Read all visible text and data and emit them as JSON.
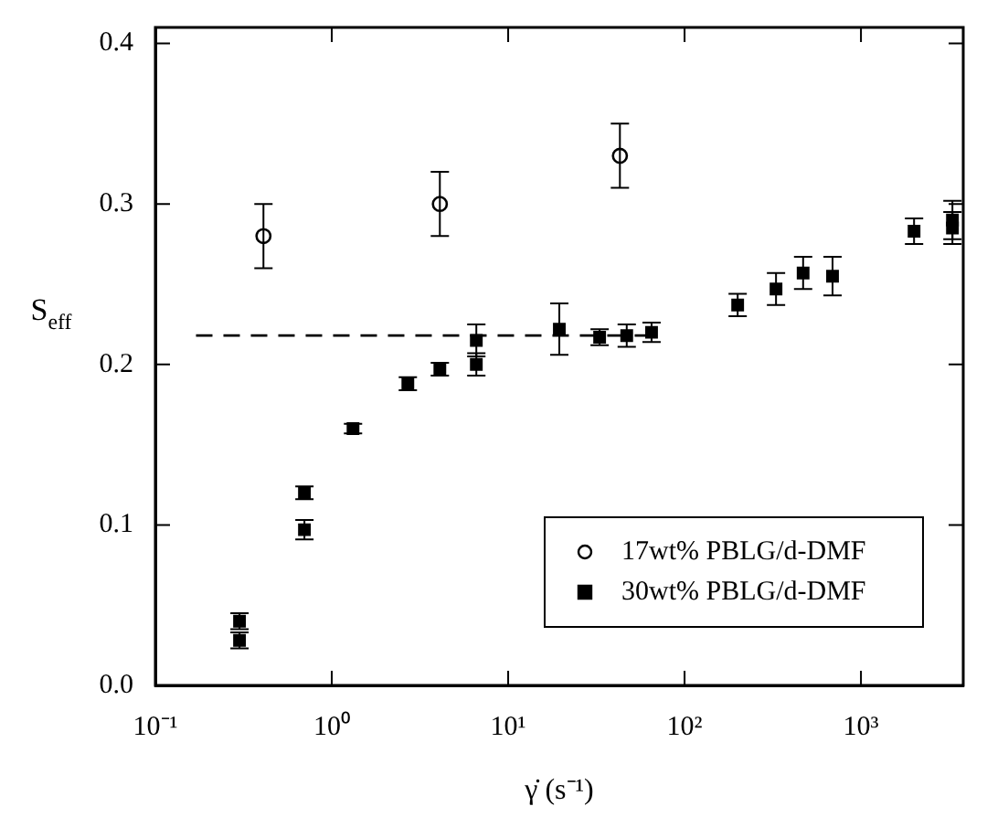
{
  "chart_data": {
    "type": "scatter",
    "xlabel": "γ̇ (s⁻¹)",
    "ylabel": "S$_{eff}$",
    "log": "x",
    "xlim": [
      0.1,
      3800
    ],
    "xticks": [
      {
        "value": 0.1,
        "label": "10⁻¹"
      },
      {
        "value": 1,
        "label": "10⁰"
      },
      {
        "value": 10,
        "label": "10¹"
      },
      {
        "value": 100,
        "label": "10²"
      },
      {
        "value": 1000,
        "label": "10³"
      }
    ],
    "ylim": [
      0,
      0.41
    ],
    "yticks": [
      {
        "value": 0,
        "label": "0.0"
      },
      {
        "value": 0.1,
        "label": "0.1"
      },
      {
        "value": 0.2,
        "label": "0.2"
      },
      {
        "value": 0.3,
        "label": "0.3"
      },
      {
        "value": 0.4,
        "label": "0.4"
      }
    ],
    "grid": false,
    "legend": "bottom right",
    "series": [
      {
        "name": "17wt% PBLG/d-DMF",
        "color": "#000000",
        "marker": "circle",
        "x": [
          0.41,
          4.1,
          43
        ],
        "values": [
          0.28,
          0.3,
          0.33
        ],
        "errors": [
          0.02,
          0.02,
          0.02
        ]
      },
      {
        "name": "30wt% PBLG/d-DMF",
        "color": "#000000",
        "marker": "square",
        "x": [
          0.3,
          0.3,
          0.7,
          0.7,
          1.32,
          2.7,
          4.1,
          6.6,
          6.6,
          19.5,
          33,
          47,
          65,
          200,
          330,
          470,
          690,
          2000,
          3300,
          3300
        ],
        "values": [
          0.04,
          0.028,
          0.12,
          0.097,
          0.16,
          0.188,
          0.197,
          0.215,
          0.2,
          0.222,
          0.217,
          0.218,
          0.22,
          0.237,
          0.247,
          0.257,
          0.255,
          0.283,
          0.285,
          0.29
        ],
        "errors": [
          0.005,
          0.005,
          0.004,
          0.006,
          0.003,
          0.004,
          0.004,
          0.01,
          0.007,
          0.016,
          0.005,
          0.007,
          0.006,
          0.007,
          0.01,
          0.01,
          0.012,
          0.008,
          0.01,
          0.012
        ]
      },
      {
        "type": "line",
        "color": "#000000",
        "line_style": "dashed",
        "marker": "none",
        "x": [
          0.17,
          70
        ],
        "values": [
          0.218,
          0.218
        ]
      }
    ]
  }
}
